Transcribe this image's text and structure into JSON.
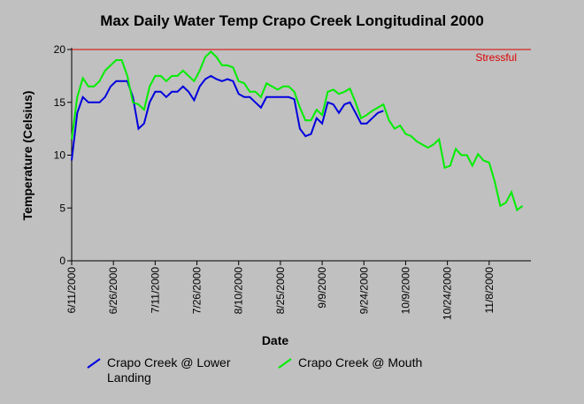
{
  "chart_data": {
    "type": "line",
    "title": "Max Daily Water Temp Crapo Creek Longitudinal 2000",
    "x_label": "Date",
    "y_label": "Temperature (Celsius)",
    "x": [
      "6/11/2000",
      "6/13/2000",
      "6/15/2000",
      "6/17/2000",
      "6/19/2000",
      "6/21/2000",
      "6/23/2000",
      "6/25/2000",
      "6/27/2000",
      "6/29/2000",
      "7/1/2000",
      "7/3/2000",
      "7/5/2000",
      "7/7/2000",
      "7/9/2000",
      "7/11/2000",
      "7/13/2000",
      "7/15/2000",
      "7/17/2000",
      "7/19/2000",
      "7/21/2000",
      "7/23/2000",
      "7/25/2000",
      "7/27/2000",
      "7/29/2000",
      "7/31/2000",
      "8/2/2000",
      "8/4/2000",
      "8/6/2000",
      "8/8/2000",
      "8/10/2000",
      "8/12/2000",
      "8/14/2000",
      "8/16/2000",
      "8/18/2000",
      "8/20/2000",
      "8/22/2000",
      "8/24/2000",
      "8/26/2000",
      "8/28/2000",
      "8/30/2000",
      "9/1/2000",
      "9/3/2000",
      "9/5/2000",
      "9/7/2000",
      "9/9/2000",
      "9/11/2000",
      "9/13/2000",
      "9/15/2000",
      "9/17/2000",
      "9/19/2000",
      "9/21/2000",
      "9/23/2000",
      "9/25/2000",
      "9/27/2000",
      "9/29/2000",
      "10/1/2000",
      "10/3/2000",
      "10/5/2000",
      "10/7/2000",
      "10/9/2000",
      "10/11/2000",
      "10/13/2000",
      "10/15/2000",
      "10/17/2000",
      "10/19/2000",
      "10/21/2000",
      "10/23/2000",
      "10/25/2000",
      "10/27/2000",
      "10/29/2000",
      "10/31/2000",
      "11/2/2000",
      "11/4/2000",
      "11/6/2000",
      "11/8/2000",
      "11/10/2000",
      "11/12/2000",
      "11/14/2000",
      "11/16/2000",
      "11/18/2000",
      "11/20/2000"
    ],
    "series": [
      {
        "name": "Crapo Creek @ Lower Landing",
        "color": "#0000dd",
        "values": [
          9.5,
          14,
          15.5,
          15,
          15,
          15,
          15.5,
          16.5,
          17,
          17,
          17,
          15.5,
          12.5,
          13,
          15,
          16,
          16,
          15.5,
          16,
          16,
          16.5,
          16,
          15.2,
          16.5,
          17.2,
          17.5,
          17.2,
          17,
          17.2,
          17,
          15.8,
          15.5,
          15.5,
          15,
          14.5,
          15.5,
          15.5,
          15.5,
          15.5,
          15.5,
          15.3,
          12.5,
          11.8,
          12,
          13.5,
          13,
          15,
          14.8,
          14,
          14.8,
          15,
          14,
          13,
          13,
          13.5,
          14,
          14.2,
          null,
          null,
          null,
          null,
          null,
          null,
          null,
          null,
          null,
          null,
          null,
          null,
          null,
          null,
          null,
          null,
          null,
          null,
          null,
          null,
          null,
          null,
          null,
          null,
          null
        ]
      },
      {
        "name": "Crapo Creek @ Mouth",
        "color": "#00ee00",
        "values": [
          11.5,
          15.5,
          17.3,
          16.5,
          16.5,
          17,
          18,
          18.5,
          19,
          19,
          17.5,
          15,
          14.8,
          14.3,
          16.5,
          17.5,
          17.5,
          17,
          17.5,
          17.5,
          18,
          17.5,
          17,
          18,
          19.3,
          19.8,
          19.3,
          18.5,
          18.5,
          18.3,
          17,
          16.8,
          16,
          16,
          15.5,
          16.8,
          16.5,
          16.2,
          16.5,
          16.5,
          16,
          14.5,
          13.3,
          13.3,
          14.3,
          13.8,
          16,
          16.2,
          15.8,
          16,
          16.3,
          15,
          13.5,
          13.8,
          14.2,
          14.5,
          14.8,
          13.3,
          12.5,
          12.8,
          12,
          11.8,
          11.3,
          11,
          10.7,
          11,
          11.5,
          8.8,
          9,
          10.6,
          10,
          10,
          9,
          10.1,
          9.5,
          9.3,
          7.5,
          5.2,
          5.5,
          6.5,
          4.8,
          5.2
        ]
      }
    ],
    "threshold": {
      "value": 20,
      "label": "Stressful",
      "color": "#dd0000"
    },
    "xlim": [
      "6/11/2000",
      "11/23/2000"
    ],
    "xticks": [
      "6/11/2000",
      "6/26/2000",
      "7/11/2000",
      "7/26/2000",
      "8/10/2000",
      "8/25/2000",
      "9/9/2000",
      "9/24/2000",
      "10/9/2000",
      "10/24/2000",
      "11/8/2000"
    ],
    "ylim": [
      0,
      20
    ],
    "yticks": [
      0,
      5,
      10,
      15,
      20
    ],
    "grid": false,
    "legend": "bottom"
  }
}
